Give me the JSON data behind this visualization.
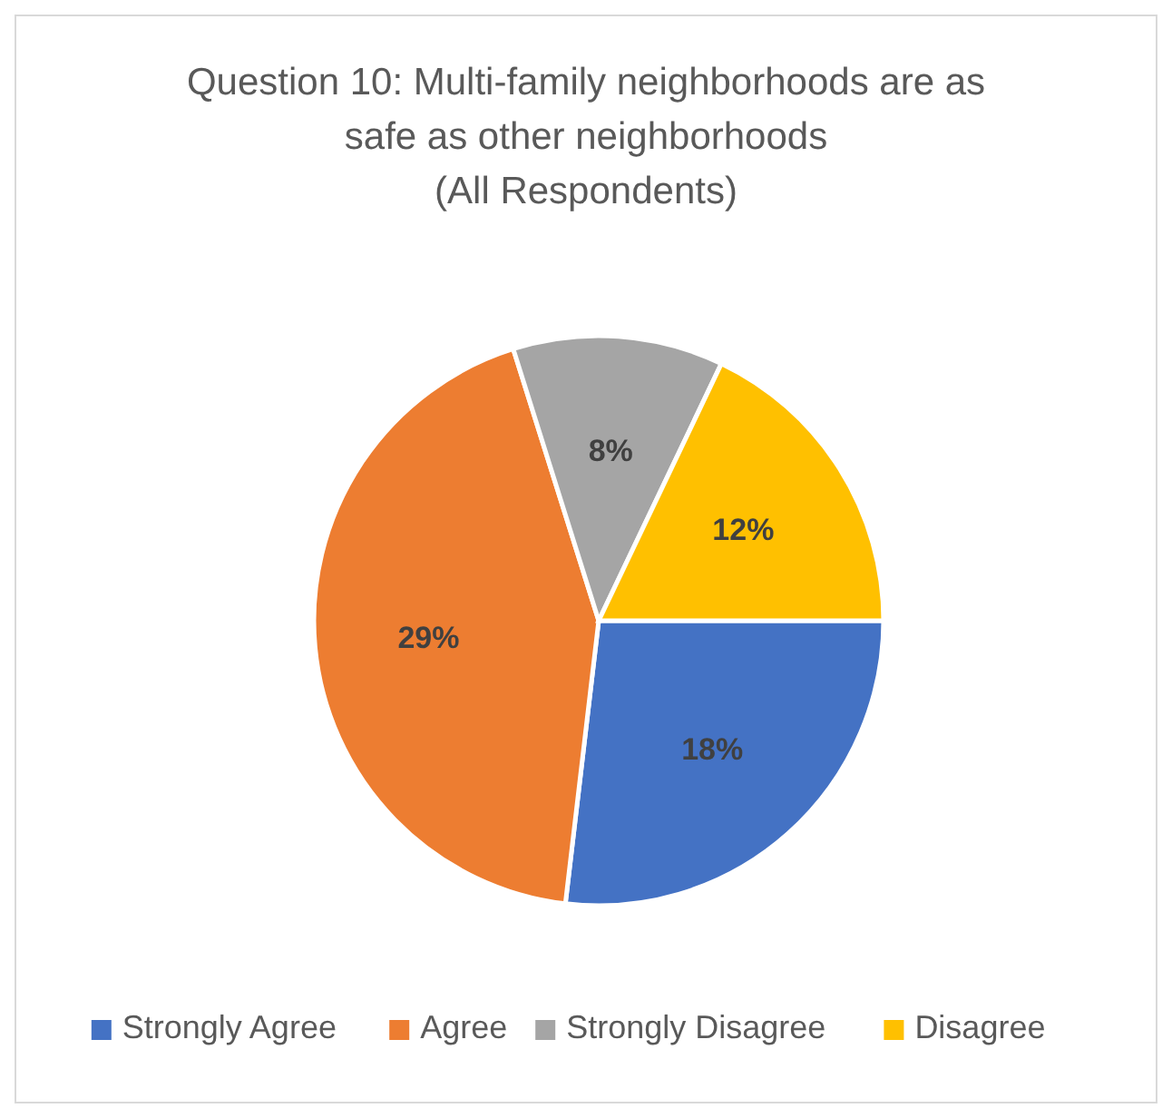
{
  "chart_data": {
    "type": "pie",
    "title": "Question 10: Multi-family neighborhoods are as safe as other neighborhoods",
    "subtitle": "(All Respondents)",
    "categories": [
      "Strongly Agree",
      "Agree",
      "Strongly Disagree",
      "Disagree"
    ],
    "values": [
      18,
      29,
      8,
      12
    ],
    "colors": [
      "#4472c4",
      "#ed7d31",
      "#a5a5a5",
      "#ffc000"
    ],
    "value_labels": [
      "18%",
      "29%",
      "8%",
      "12%"
    ],
    "legend": "bottom"
  }
}
